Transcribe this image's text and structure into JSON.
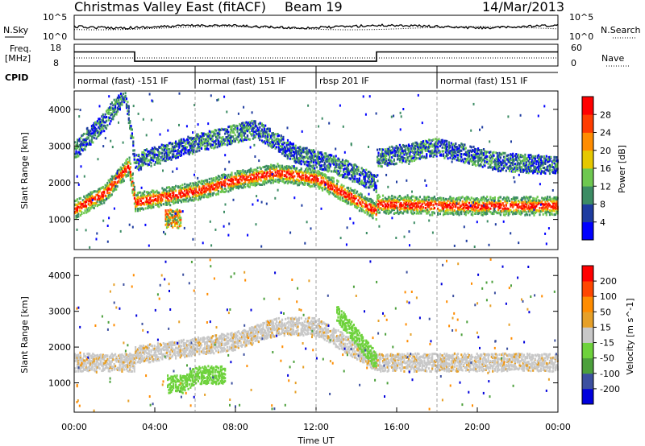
{
  "header": {
    "station": "Christmas Valley East (fitACF)",
    "beam": "Beam 19",
    "date": "14/Mar/2013"
  },
  "noise_panel": {
    "left_label": "N.Sky",
    "right_label": "N.Search",
    "left_ticks": [
      "10^5",
      "10^0"
    ],
    "right_ticks": [
      "10^5",
      "10^0"
    ]
  },
  "freq_panel": {
    "left_label_1": "Freq.",
    "left_label_2": "[MHz]",
    "left_ticks": [
      "18",
      "8"
    ],
    "right_label": "Nave",
    "right_ticks": [
      "60",
      "0"
    ],
    "freq_series_mhz": [
      {
        "t": 0.0,
        "f": 14.5
      },
      {
        "t": 3.0,
        "f": 14.5
      },
      {
        "t": 3.0,
        "f": 10.2
      },
      {
        "t": 15.0,
        "f": 10.2
      },
      {
        "t": 15.0,
        "f": 14.5
      },
      {
        "t": 24.0,
        "f": 14.5
      }
    ]
  },
  "cpid": {
    "label": "CPID",
    "segments": [
      {
        "start": 0.0,
        "end": 6.0,
        "text": "normal (fast) -151 IF"
      },
      {
        "start": 6.0,
        "end": 12.0,
        "text": "normal (fast) 151 IF"
      },
      {
        "start": 12.0,
        "end": 18.0,
        "text": "rbsp 201 IF"
      },
      {
        "start": 18.0,
        "end": 24.0,
        "text": "normal (fast) 151 IF"
      }
    ]
  },
  "chart_data": [
    {
      "type": "heatmap",
      "ylabel": "Slant Range [km]",
      "xlabel": "",
      "xlim_hours": [
        0,
        24
      ],
      "ylim_km": [
        180,
        4500
      ],
      "y_ticks": [
        "1000",
        "2000",
        "3000",
        "4000"
      ],
      "colorbar": {
        "label": "Power [dB]",
        "ticks": [
          "4",
          "8",
          "12",
          "16",
          "20",
          "24",
          "28"
        ],
        "colors": [
          "#0000ff",
          "#1e3ca0",
          "#3c8c64",
          "#6ec850",
          "#e6c800",
          "#ff8c00",
          "#ff3c00",
          "#ff0000"
        ]
      },
      "bands": [
        {
          "desc": "main F-region band",
          "points": [
            [
              0.0,
              1300
            ],
            [
              1.5,
              1750
            ],
            [
              2.7,
              2500
            ],
            [
              3.0,
              1500
            ],
            [
              6.0,
              1800
            ],
            [
              8.0,
              2100
            ],
            [
              10.0,
              2300
            ],
            [
              12.0,
              2150
            ],
            [
              13.5,
              1700
            ],
            [
              15.0,
              1250
            ],
            [
              15.0,
              1450
            ],
            [
              18.0,
              1400
            ],
            [
              21.0,
              1400
            ],
            [
              24.0,
              1400
            ]
          ]
        },
        {
          "desc": "upper band",
          "points": [
            [
              0.0,
              2900
            ],
            [
              1.5,
              3700
            ],
            [
              2.5,
              4500
            ],
            [
              3.0,
              2600
            ],
            [
              6.0,
              3100
            ],
            [
              9.0,
              3500
            ],
            [
              11.0,
              2800
            ],
            [
              13.0,
              2500
            ],
            [
              15.0,
              2000
            ],
            [
              15.0,
              2700
            ],
            [
              18.0,
              3000
            ],
            [
              21.0,
              2600
            ],
            [
              24.0,
              2500
            ]
          ]
        },
        {
          "desc": "patch",
          "points": [
            [
              4.5,
              1050
            ],
            [
              5.3,
              1050
            ]
          ]
        }
      ]
    },
    {
      "type": "heatmap",
      "ylabel": "Slant Range [km]",
      "xlabel": "Time UT",
      "xlim_hours": [
        0,
        24
      ],
      "ylim_km": [
        180,
        4500
      ],
      "y_ticks": [
        "1000",
        "2000",
        "3000",
        "4000"
      ],
      "x_ticks": [
        "00:00",
        "04:00",
        "08:00",
        "12:00",
        "16:00",
        "20:00",
        "00:00"
      ],
      "colorbar": {
        "label": "Velocity [m s^-1]",
        "ticks": [
          "200",
          "100",
          "50",
          "15",
          "-15",
          "-50",
          "-100",
          "-200"
        ],
        "colors": [
          "#0000dc",
          "#3c50a0",
          "#4ca03c",
          "#6ed23c",
          "#c8c8c8",
          "#e6a028",
          "#ff8c00",
          "#ff4600",
          "#ff0000"
        ]
      },
      "bands": [
        {
          "desc": "main grey band (near-zero velocity)",
          "points": [
            [
              0.0,
              1600
            ],
            [
              3.0,
              1600
            ],
            [
              3.0,
              1800
            ],
            [
              8.0,
              2200
            ],
            [
              10.0,
              2600
            ],
            [
              12.0,
              2600
            ],
            [
              15.0,
              1600
            ],
            [
              24.0,
              1600
            ]
          ]
        },
        {
          "desc": "green streak (positive velocity)",
          "points": [
            [
              13.0,
              3000
            ],
            [
              15.0,
              1600
            ]
          ]
        },
        {
          "desc": "green patch",
          "points": [
            [
              4.6,
              1000
            ],
            [
              5.4,
              1000
            ],
            [
              6.0,
              1250
            ],
            [
              7.5,
              1250
            ]
          ]
        }
      ]
    }
  ]
}
